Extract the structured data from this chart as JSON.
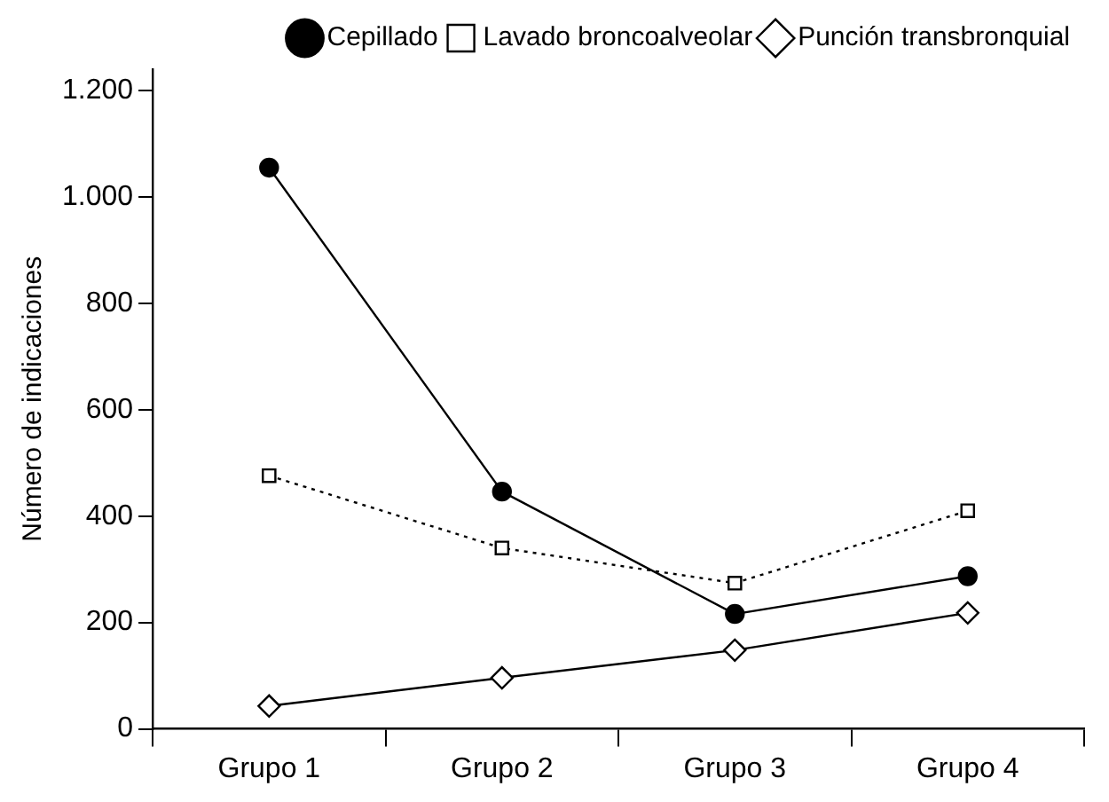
{
  "chart_data": {
    "type": "line",
    "ylabel": "Número de indicaciones",
    "categories": [
      "Grupo 1",
      "Grupo 2",
      "Grupo 3",
      "Grupo 4"
    ],
    "series": [
      {
        "name": "Cepillado",
        "color": "#000000",
        "values": [
          1055,
          446,
          216,
          287
        ],
        "marker": "circle",
        "line_style": "solid"
      },
      {
        "name": "Lavado broncoalveolar",
        "color": "#000000",
        "values": [
          476,
          340,
          274,
          410
        ],
        "marker": "square",
        "line_style": "dotted"
      },
      {
        "name": "Punción transbronquial",
        "color": "#000000",
        "values": [
          43,
          96,
          148,
          218
        ],
        "marker": "diamond",
        "line_style": "solid"
      }
    ],
    "ylim": [
      0,
      1240
    ],
    "yticks": [
      0,
      200,
      400,
      600,
      800,
      {
        "value": 1000,
        "label": "1.000"
      },
      {
        "value": 1200,
        "label": "1.200"
      }
    ],
    "grid": false,
    "legend": "top right"
  }
}
